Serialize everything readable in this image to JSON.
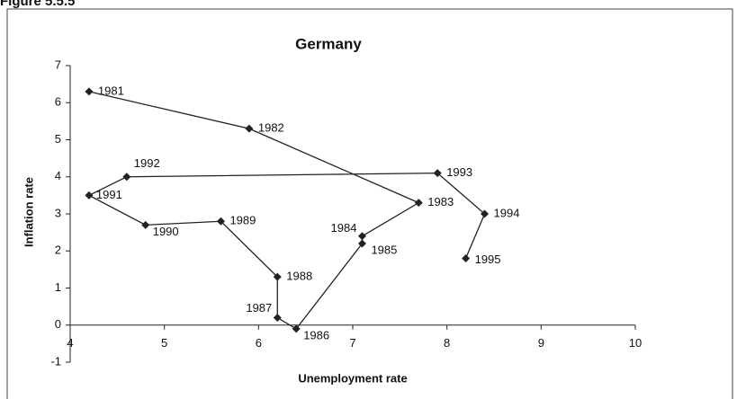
{
  "figure_label": "Figure 5.5.5",
  "chart_data": {
    "type": "line",
    "title": "Germany",
    "x_label": "Unemployment rate",
    "y_label": "Inflation rate",
    "x": [
      4.2,
      5.9,
      7.7,
      7.1,
      7.1,
      6.4,
      6.2,
      6.2,
      5.6,
      4.8,
      4.2,
      4.6,
      7.9,
      8.4,
      8.2
    ],
    "series": [
      {
        "color": "#222222",
        "values": [
          6.3,
          5.3,
          3.3,
          2.4,
          2.2,
          -0.1,
          0.2,
          1.3,
          2.8,
          2.7,
          3.5,
          4.0,
          4.1,
          3.0,
          1.8
        ]
      }
    ],
    "point_labels": [
      "1981",
      "1982",
      "1983",
      "1984",
      "1985",
      "1986",
      "1987",
      "1988",
      "1989",
      "1990",
      "1991",
      "1992",
      "1993",
      "1994",
      "1995"
    ],
    "xlim": [
      4,
      10
    ],
    "xticks": [
      4,
      5,
      6,
      7,
      8,
      9,
      10
    ],
    "ylim": [
      -1,
      7
    ],
    "yticks": [
      -1,
      0,
      1,
      2,
      3,
      4,
      5,
      6,
      7
    ],
    "grid": false
  }
}
